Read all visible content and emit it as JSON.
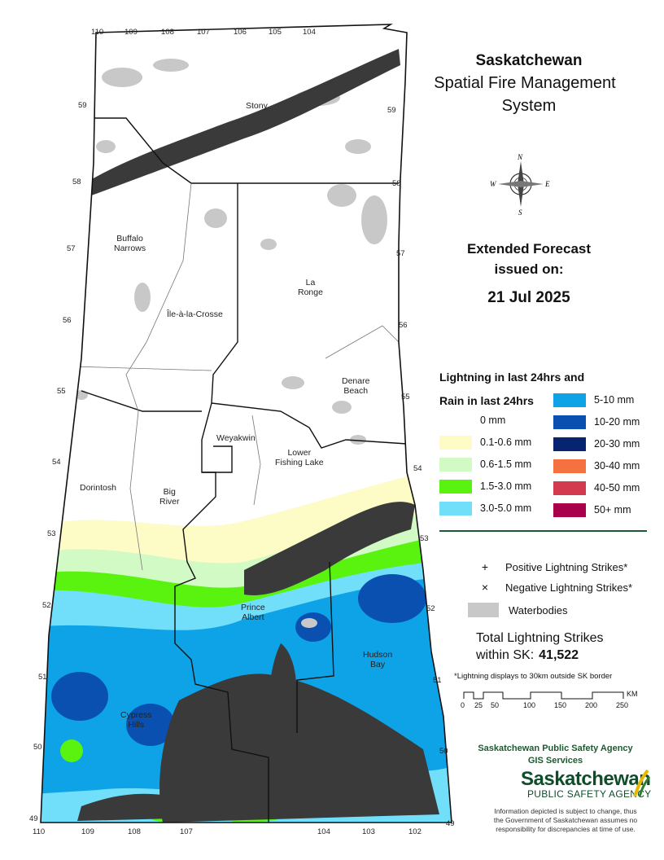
{
  "title": {
    "line1": "Saskatchewan",
    "line2": "Spatial Fire Management",
    "line3": "System"
  },
  "forecast": {
    "line1": "Extended Forecast",
    "line2": "issued on:",
    "date": "21 Jul 2025"
  },
  "compass_icon": "compass-rose-icon",
  "compass_labels": {
    "n": "N",
    "e": "E",
    "s": "S",
    "w": "W"
  },
  "legend": {
    "heading1": "Lightning in last 24hrs and",
    "heading2": "Rain in last 24hrs",
    "rain_classes": [
      {
        "label": "0 mm",
        "color": "#ffffff"
      },
      {
        "label": "0.1-0.6 mm",
        "color": "#fdfbc6"
      },
      {
        "label": "0.6-1.5 mm",
        "color": "#d2fac4"
      },
      {
        "label": "1.5-3.0 mm",
        "color": "#5af20f"
      },
      {
        "label": "3.0-5.0 mm",
        "color": "#72dffa"
      },
      {
        "label": "5-10 mm",
        "color": "#0ea2e6"
      },
      {
        "label": "10-20 mm",
        "color": "#0a50b0"
      },
      {
        "label": "20-30 mm",
        "color": "#062470"
      },
      {
        "label": "30-40 mm",
        "color": "#f57140"
      },
      {
        "label": "40-50 mm",
        "color": "#d43a4f"
      },
      {
        "label": "50+ mm",
        "color": "#a8004a"
      }
    ],
    "symbols": [
      {
        "glyph": "+",
        "label": "Positive Lightning Strikes*"
      },
      {
        "glyph": "×",
        "label": "Negative Lightning Strikes*"
      },
      {
        "glyph": "",
        "label": "Waterbodies",
        "color": "#c8c8c8"
      }
    ]
  },
  "totals": {
    "label1": "Total Lightning Strikes",
    "label2": "within SK:",
    "value": "41,522",
    "note": "*Lightning displays to 30km outside SK border"
  },
  "scale": {
    "unit": "KM",
    "ticks": [
      "0",
      "25",
      "50",
      "100",
      "150",
      "200",
      "250"
    ]
  },
  "agency": {
    "line1": "Saskatchewan Public Safety Agency",
    "line2": "GIS  Services",
    "logo_line1": "Saskatchewan",
    "logo_line2": "PUBLIC SAFETY AGENCY",
    "logo_icon": "wheat-sheaf-icon",
    "disclaimer": [
      "Information depicted is subject to change, thus",
      "the Government of Saskatchewan assumes no",
      "responsibility for discrepancies at time of use."
    ]
  },
  "map": {
    "longitudes_top": [
      "110",
      "109",
      "108",
      "107",
      "106",
      "105",
      "104"
    ],
    "longitudes_bottom": [
      "110",
      "109",
      "108",
      "107",
      "104",
      "103",
      "102"
    ],
    "latitudes_left": [
      "59",
      "58",
      "57",
      "56",
      "55",
      "54",
      "53",
      "52",
      "51",
      "50",
      "49"
    ],
    "latitudes_right": [
      "59",
      "58",
      "57",
      "56",
      "55",
      "54",
      "53",
      "52",
      "51",
      "50",
      "49"
    ],
    "places": [
      {
        "name": "Stony",
        "line2": ""
      },
      {
        "name": "Buffalo",
        "line2": "Narrows"
      },
      {
        "name": "La",
        "line2": "Ronge"
      },
      {
        "name": "Île-à-la-Crosse",
        "line2": ""
      },
      {
        "name": "Denare",
        "line2": "Beach"
      },
      {
        "name": "Weyakwin",
        "line2": ""
      },
      {
        "name": "Lower",
        "line2": "Fishing Lake"
      },
      {
        "name": "Dorintosh",
        "line2": ""
      },
      {
        "name": "Big",
        "line2": "River"
      },
      {
        "name": "Prince",
        "line2": "Albert"
      },
      {
        "name": "Hudson",
        "line2": "Bay"
      },
      {
        "name": "Cypress",
        "line2": "Hills"
      }
    ]
  }
}
